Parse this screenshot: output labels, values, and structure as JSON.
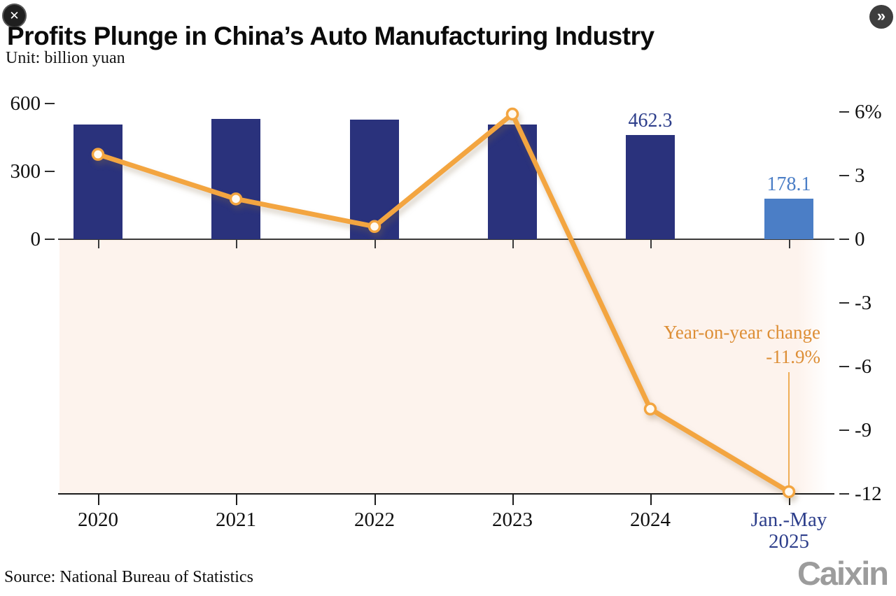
{
  "header": {
    "title": "Profits Plunge in China’s Auto Manufacturing Industry",
    "subtitle": "Unit: billion yuan",
    "close_icon": "✕",
    "expand_icon": "»"
  },
  "annotation": {
    "line1": "Year-on-year change",
    "line2": "-11.9%"
  },
  "footer": {
    "source": "Source: National Bureau of Statistics",
    "logo": "Caixin"
  },
  "colors": {
    "bar_navy": "#2a327c",
    "bar_highlight_blue": "#4b7ec6",
    "bar_label_navy": "#2d3e8b",
    "bar_label_blue": "#4b7ec6",
    "line_orange": "#f3a540",
    "marker_fill": "#fffaf2",
    "annotation_orange": "#dd8e35",
    "callout_orange": "#efae57",
    "below_zero_shading": "#fdf3ed",
    "zero_line": "#3a3a3a",
    "bottom_line": "#1c1c1c",
    "x_label_navy": "#2d3e8b",
    "logo_gray": "#9c9c9c"
  },
  "chart_data": {
    "type": "bar",
    "subtype": "bar-line-combo",
    "title": "Profits Plunge in China’s Auto Manufacturing Industry",
    "unit_label": "Unit: billion yuan",
    "categories": [
      "2020",
      "2021",
      "2022",
      "2023",
      "2024",
      "Jan.-May\n2025"
    ],
    "series": [
      {
        "name": "Profit (billion yuan)",
        "type": "bar",
        "axis": "left",
        "values": [
          508,
          531,
          529,
          507,
          462.3,
          178.1
        ],
        "data_labels": [
          null,
          null,
          null,
          null,
          "462.3",
          "178.1"
        ]
      },
      {
        "name": "Year-on-year change (%)",
        "type": "line",
        "axis": "right",
        "values": [
          4.0,
          1.9,
          0.6,
          5.9,
          -8.0,
          -11.9
        ]
      }
    ],
    "left_axis": {
      "tick_labels": [
        "600",
        "300",
        "0"
      ],
      "tick_values": [
        600,
        300,
        0
      ],
      "range": [
        0,
        600
      ]
    },
    "right_axis": {
      "tick_labels": [
        "6%",
        "3",
        "0",
        "-3",
        "-6",
        "-9",
        "-12"
      ],
      "tick_values": [
        6,
        3,
        0,
        -3,
        -6,
        -9,
        -12
      ],
      "range": [
        -12,
        6
      ]
    },
    "annotation": {
      "text": "Year-on-year change",
      "value": "-11.9%"
    },
    "layout_hints": {
      "grid": false,
      "legend": false,
      "below_zero_shaded": true,
      "highlighted_category_index": 5
    },
    "source": "Source: National Bureau of Statistics"
  }
}
